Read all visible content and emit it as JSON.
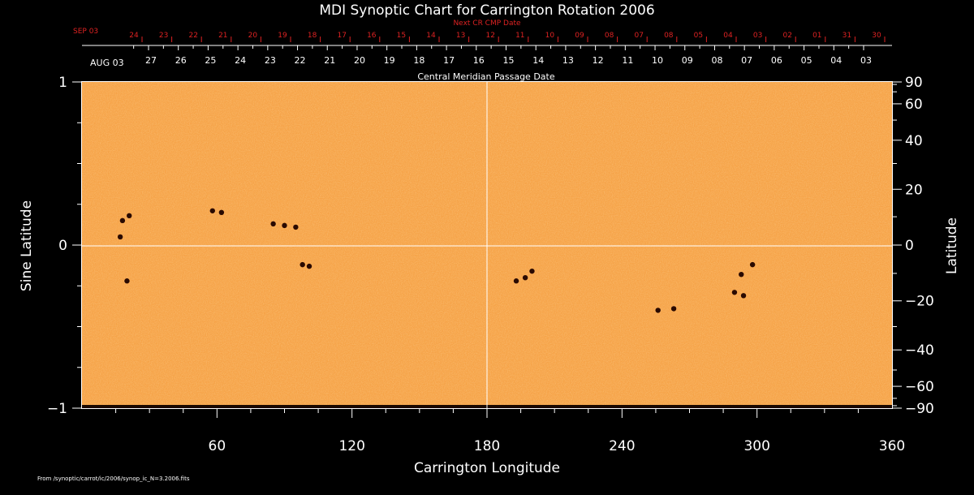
{
  "chart_data": {
    "type": "heatmap",
    "title": "MDI Synoptic Chart for Carrington Rotation 2006",
    "xlabel": "Carrington Longitude",
    "ylabel_left": "Sine Latitude",
    "ylabel_right": "Latitude",
    "xlim": [
      0,
      360
    ],
    "ylim": [
      -1,
      1
    ],
    "x_ticks": [
      "60",
      "120",
      "180",
      "240",
      "300",
      "360"
    ],
    "x_tick_values": [
      60,
      120,
      180,
      240,
      300,
      360
    ],
    "y_left_ticks": [
      "1",
      "0",
      "−1"
    ],
    "y_left_tick_values": [
      1,
      0,
      -1
    ],
    "y_right_ticks": [
      "90",
      "60",
      "40",
      "20",
      "0",
      "−20",
      "−40",
      "−60",
      "−90"
    ],
    "y_right_tick_values": [
      90,
      60,
      40,
      20,
      0,
      -20,
      -40,
      -60,
      -90
    ],
    "top_axis_label": "Central Meridian Passage Date",
    "top_axis_start": "AUG 03",
    "top_axis_dates": [
      "27",
      "26",
      "25",
      "24",
      "23",
      "22",
      "21",
      "20",
      "19",
      "18",
      "17",
      "16",
      "15",
      "14",
      "13",
      "12",
      "11",
      "10",
      "09",
      "08",
      "07",
      "06",
      "05",
      "04",
      "03"
    ],
    "next_cr_label": "Next CR CMP Date",
    "next_cr_start": "SEP 03",
    "next_cr_dates": [
      "24",
      "23",
      "22",
      "21",
      "20",
      "19",
      "18",
      "17",
      "16",
      "15",
      "14",
      "13",
      "12",
      "11",
      "10",
      "09",
      "08",
      "07",
      "08",
      "05",
      "04",
      "03",
      "02",
      "01",
      "31",
      "30"
    ],
    "colors": {
      "background": "#000000",
      "field": "#f6a348",
      "sunspot": "#2a0a00",
      "next_cr": "#dd2222",
      "axes": "#ffffff"
    },
    "sunspots": [
      {
        "lon": 18,
        "sinlat": 0.15
      },
      {
        "lon": 21,
        "sinlat": 0.18
      },
      {
        "lon": 17,
        "sinlat": 0.05
      },
      {
        "lon": 20,
        "sinlat": -0.22
      },
      {
        "lon": 58,
        "sinlat": 0.21
      },
      {
        "lon": 62,
        "sinlat": 0.2
      },
      {
        "lon": 85,
        "sinlat": 0.13
      },
      {
        "lon": 90,
        "sinlat": 0.12
      },
      {
        "lon": 95,
        "sinlat": 0.11
      },
      {
        "lon": 98,
        "sinlat": -0.12
      },
      {
        "lon": 101,
        "sinlat": -0.13
      },
      {
        "lon": 193,
        "sinlat": -0.22
      },
      {
        "lon": 197,
        "sinlat": -0.2
      },
      {
        "lon": 200,
        "sinlat": -0.16
      },
      {
        "lon": 256,
        "sinlat": -0.4
      },
      {
        "lon": 263,
        "sinlat": -0.39
      },
      {
        "lon": 290,
        "sinlat": -0.29
      },
      {
        "lon": 294,
        "sinlat": -0.31
      },
      {
        "lon": 298,
        "sinlat": -0.12
      },
      {
        "lon": 293,
        "sinlat": -0.18
      }
    ]
  },
  "footer": {
    "source_text": "From /synoptic/carrot/ic/2006/synop_ic_N=3.2006.fits"
  }
}
